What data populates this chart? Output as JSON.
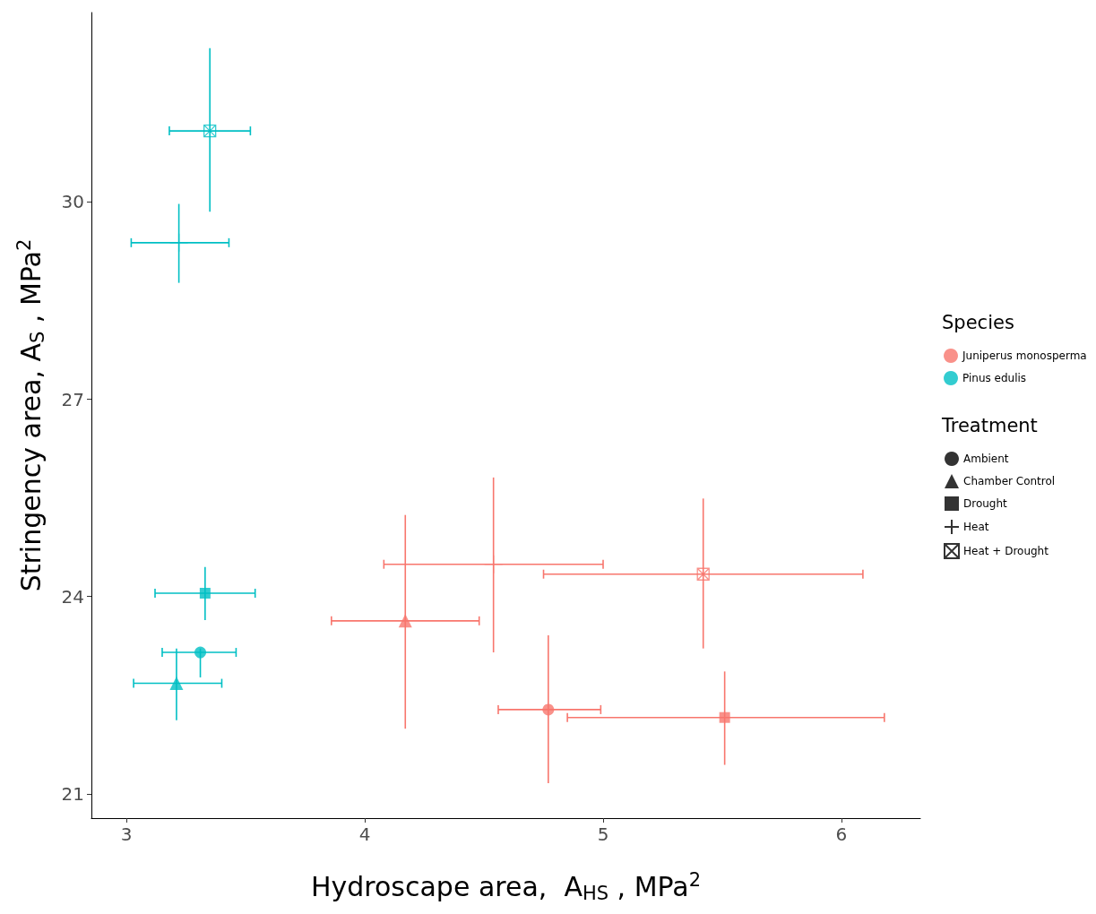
{
  "chart_data": {
    "type": "scatter",
    "xlabel": "Hydroscape area,  A$_{HS}$ , MPa$^{2}$",
    "ylabel": "Stringency area, A$_{S}$ , MPa$^{2}$",
    "xlim": [
      2.853,
      6.331
    ],
    "ylim": [
      20.63,
      32.88
    ],
    "xticks": [
      3,
      4,
      5,
      6
    ],
    "yticks": [
      21,
      24,
      27,
      30
    ],
    "grid": false,
    "legend": "right",
    "legend_title": [
      "Species",
      "Treatment"
    ],
    "series": [
      {
        "color": "#f8766d",
        "marker": "circle",
        "x": [
          4.77
        ],
        "values": [
          22.28
        ],
        "xerrors": [
          [
            4.56,
            4.99
          ]
        ],
        "errors": [
          [
            21.16,
            23.41
          ]
        ]
      },
      {
        "color": "#f8766d",
        "marker": "triangle",
        "x": [
          4.17
        ],
        "values": [
          23.63
        ],
        "xerrors": [
          [
            3.86,
            4.48
          ]
        ],
        "errors": [
          [
            21.99,
            25.24
          ]
        ]
      },
      {
        "color": "#f8766d",
        "marker": "square",
        "x": [
          5.51
        ],
        "values": [
          22.16
        ],
        "xerrors": [
          [
            4.85,
            6.18
          ]
        ],
        "errors": [
          [
            21.44,
            22.86
          ]
        ]
      },
      {
        "color": "#f8766d",
        "marker": "cross",
        "x": [
          4.54
        ],
        "values": [
          24.49
        ],
        "xerrors": [
          [
            4.08,
            5.0
          ]
        ],
        "errors": [
          [
            23.15,
            25.81
          ]
        ]
      },
      {
        "color": "#f8766d",
        "marker": "crossbox",
        "x": [
          5.42
        ],
        "values": [
          24.34
        ],
        "xerrors": [
          [
            4.75,
            6.09
          ]
        ],
        "errors": [
          [
            23.21,
            25.49
          ]
        ]
      },
      {
        "color": "#00bfc4",
        "marker": "circle",
        "x": [
          3.31
        ],
        "values": [
          23.15
        ],
        "xerrors": [
          [
            3.15,
            3.46
          ]
        ],
        "errors": [
          [
            22.77,
            23.21
          ]
        ]
      },
      {
        "color": "#00bfc4",
        "marker": "triangle",
        "x": [
          3.21
        ],
        "values": [
          22.68
        ],
        "xerrors": [
          [
            3.03,
            3.4
          ]
        ],
        "errors": [
          [
            22.12,
            23.21
          ]
        ]
      },
      {
        "color": "#00bfc4",
        "marker": "square",
        "x": [
          3.33
        ],
        "values": [
          24.05
        ],
        "xerrors": [
          [
            3.12,
            3.54
          ]
        ],
        "errors": [
          [
            23.64,
            24.45
          ]
        ]
      },
      {
        "color": "#00bfc4",
        "marker": "cross",
        "x": [
          3.22
        ],
        "values": [
          29.38
        ],
        "xerrors": [
          [
            3.02,
            3.43
          ]
        ],
        "errors": [
          [
            28.77,
            29.97
          ]
        ]
      },
      {
        "color": "#00bfc4",
        "marker": "crossbox",
        "x": [
          3.35
        ],
        "values": [
          31.08
        ],
        "xerrors": [
          [
            3.18,
            3.52
          ]
        ],
        "errors": [
          [
            29.85,
            32.34
          ]
        ]
      },
      {
        "name": "Juniperus monosperma",
        "color": "#f8766d",
        "marker": "circle"
      },
      {
        "name": "Pinus edulis",
        "color": "#00bfc4",
        "marker": "circle"
      },
      {
        "name": "Ambient",
        "color": "#000000",
        "marker": "circle"
      },
      {
        "name": "Chamber Control",
        "color": "#000000",
        "marker": "triangle"
      },
      {
        "name": "Drought",
        "color": "#000000",
        "marker": "square"
      },
      {
        "name": "Heat",
        "color": "#000000",
        "marker": "cross"
      },
      {
        "name": "Heat + Drought",
        "color": "#000000",
        "marker": "crossbox"
      }
    ]
  }
}
